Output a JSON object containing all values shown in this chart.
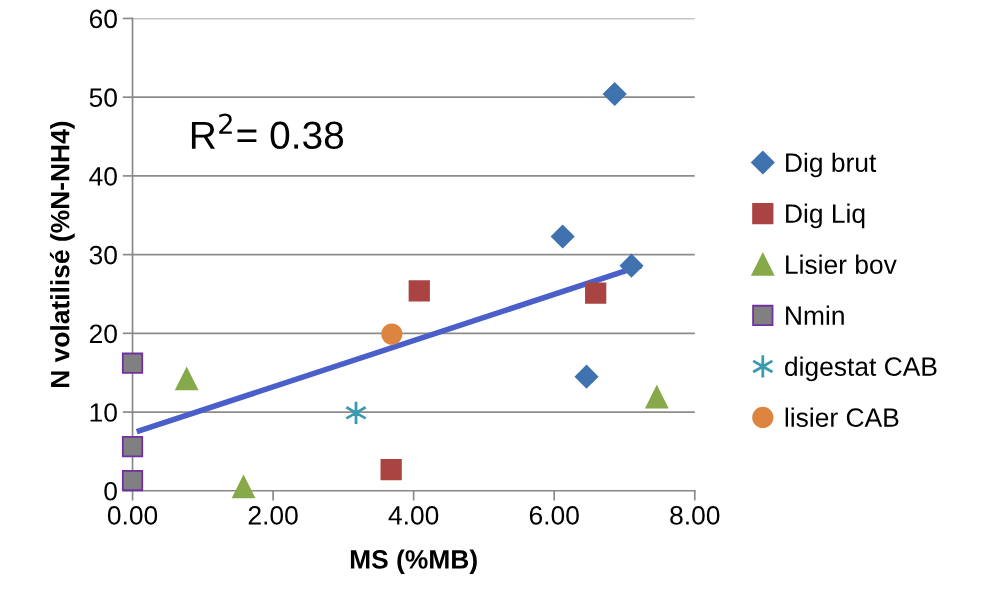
{
  "chart_data": {
    "type": "scatter",
    "xlabel": "MS (%MB)",
    "ylabel": "N volatilisé (%N-NH4)",
    "annotations": [
      "R$^{2}$= 0.38"
    ],
    "xlim": [
      0,
      8
    ],
    "ylim": [
      0,
      60
    ],
    "xticks": [
      {
        "value": 0,
        "label": "0.00"
      },
      {
        "value": 2,
        "label": "2.00"
      },
      {
        "value": 4,
        "label": "4.00"
      },
      {
        "value": 6,
        "label": "6.00"
      },
      {
        "value": 8,
        "label": "8.00"
      }
    ],
    "yticks": [
      0,
      10,
      20,
      30,
      40,
      50,
      60
    ],
    "grid": "y",
    "legend": "right",
    "series": [
      {
        "name": "Dig brut",
        "color": "#3f72af",
        "marker": "diamond",
        "x": [
          6.86,
          6.12,
          7.1,
          6.46
        ],
        "values": [
          50.4,
          32.3,
          28.6,
          14.5
        ]
      },
      {
        "name": "Dig Liq",
        "color": "#a94442",
        "marker": "square",
        "x": [
          4.08,
          6.59,
          3.68
        ],
        "values": [
          25.4,
          25.1,
          2.7
        ]
      },
      {
        "name": "Lisier bov",
        "color": "#86a94a",
        "marker": "triangle",
        "x": [
          0.77,
          1.58,
          7.46
        ],
        "values": [
          14.2,
          0.5,
          11.9
        ]
      },
      {
        "name": "Nmin",
        "color": "#808080",
        "marker": "square",
        "x": [
          0,
          0,
          0
        ],
        "values": [
          16.2,
          5.6,
          1.3
        ]
      },
      {
        "name": "digestat CAB",
        "color": "#3a9ab0",
        "marker": "cross",
        "x": [
          3.18
        ],
        "values": [
          9.9
        ]
      },
      {
        "name": "lisier CAB",
        "color": "#dd8440",
        "marker": "circle",
        "x": [
          3.69
        ],
        "values": [
          19.9
        ]
      },
      {
        "type": "line",
        "color": "#4a5fc9",
        "marker": "none",
        "line_style": "solid",
        "x": [
          0.06,
          7.24
        ],
        "values": [
          7.5,
          28.6
        ]
      }
    ]
  }
}
